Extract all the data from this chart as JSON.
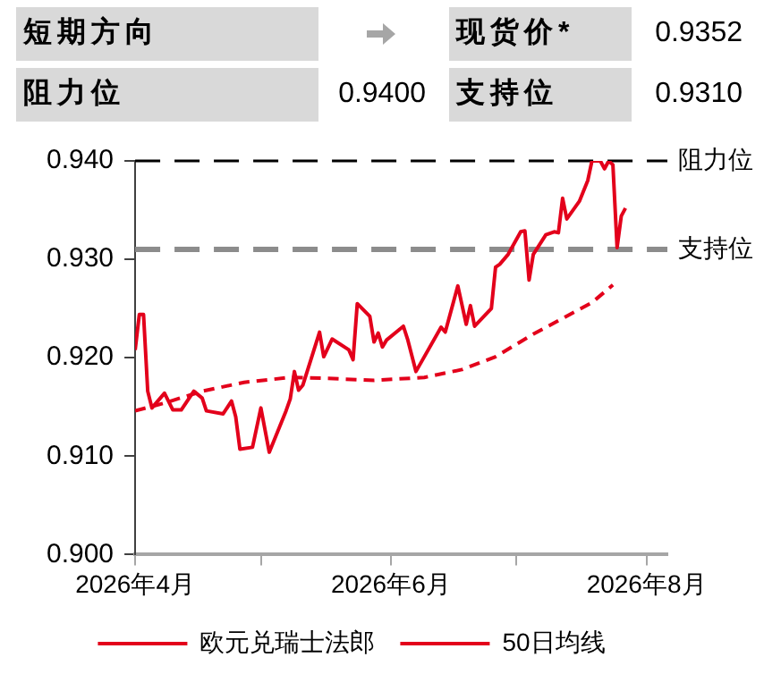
{
  "chart_data": [
    {
      "type": "other",
      "annotations": [
        "短期方向",
        "现货价*",
        "0.9352",
        "阻力位",
        "0.9400",
        "支持位",
        "0.9310"
      ]
    },
    {
      "type": "line",
      "marker": "none",
      "legend": "bottom",
      "grid": false,
      "xlim": [
        "2026-04-01",
        "2026-08-06"
      ],
      "xticks": [
        {
          "value": "2026-04-01",
          "label": "2026年4月"
        },
        {
          "value": "2026-05-01",
          "label": null
        },
        {
          "value": "2026-06-01",
          "label": "2026年6月"
        },
        {
          "value": "2026-07-01",
          "label": null
        },
        {
          "value": "2026-08-01",
          "label": "2026年8月"
        }
      ],
      "ylim": [
        0.9,
        0.94
      ],
      "yticks": [
        {
          "value": 0.9,
          "label": "0.900"
        },
        {
          "value": 0.91,
          "label": "0.910"
        },
        {
          "value": 0.92,
          "label": "0.920"
        },
        {
          "value": 0.93,
          "label": "0.930"
        },
        {
          "value": 0.94,
          "label": "0.940"
        }
      ],
      "ref_lines": [
        {
          "axis": "y",
          "value": 0.94,
          "label": "阻力位",
          "color": "#000000",
          "line_style": "dashed"
        },
        {
          "axis": "y",
          "value": 0.931,
          "label": "支持位",
          "color": "#8c8c8c",
          "line_style": "dashed"
        }
      ],
      "series": [
        {
          "name": "欧元兑瑞士法郎",
          "color": "#e3001b",
          "line_style": "solid",
          "x": [
            "2026-04-01",
            "2026-04-02",
            "2026-04-03",
            "2026-04-04",
            "2026-04-05",
            "2026-04-08",
            "2026-04-10",
            "2026-04-12",
            "2026-04-15",
            "2026-04-17",
            "2026-04-18",
            "2026-04-22",
            "2026-04-24",
            "2026-04-25",
            "2026-04-26",
            "2026-04-29",
            "2026-05-01",
            "2026-05-03",
            "2026-05-07",
            "2026-05-08",
            "2026-05-09",
            "2026-05-10",
            "2026-05-11",
            "2026-05-15",
            "2026-05-16",
            "2026-05-18",
            "2026-05-22",
            "2026-05-23",
            "2026-05-24",
            "2026-05-27",
            "2026-05-28",
            "2026-05-29",
            "2026-05-30",
            "2026-05-31",
            "2026-06-04",
            "2026-06-05",
            "2026-06-07",
            "2026-06-13",
            "2026-06-14",
            "2026-06-17",
            "2026-06-19",
            "2026-06-20",
            "2026-06-21",
            "2026-06-25",
            "2026-06-26",
            "2026-06-27",
            "2026-06-29",
            "2026-07-02",
            "2026-07-03",
            "2026-07-04",
            "2026-07-05",
            "2026-07-08",
            "2026-07-10",
            "2026-07-11",
            "2026-07-12",
            "2026-07-13",
            "2026-07-16",
            "2026-07-18",
            "2026-07-19",
            "2026-07-21",
            "2026-07-22",
            "2026-07-23",
            "2026-07-24",
            "2026-07-25",
            "2026-07-26",
            "2026-07-27"
          ],
          "values": [
            0.9208,
            0.9244,
            0.9244,
            0.9166,
            0.9149,
            0.9164,
            0.9147,
            0.9147,
            0.9166,
            0.9159,
            0.9146,
            0.9143,
            0.9156,
            0.914,
            0.9107,
            0.9109,
            0.9149,
            0.9104,
            0.9146,
            0.9158,
            0.9186,
            0.9167,
            0.9172,
            0.9226,
            0.9201,
            0.9219,
            0.9208,
            0.9198,
            0.9255,
            0.9242,
            0.9216,
            0.9225,
            0.9211,
            0.9218,
            0.9232,
            0.9219,
            0.9186,
            0.9231,
            0.9226,
            0.9273,
            0.9234,
            0.9253,
            0.9232,
            0.925,
            0.9292,
            0.9295,
            0.9305,
            0.9328,
            0.9329,
            0.9279,
            0.9305,
            0.9325,
            0.9328,
            0.9327,
            0.9362,
            0.9341,
            0.9359,
            0.938,
            0.94,
            0.94,
            0.9392,
            0.94,
            0.9396,
            0.9312,
            0.9344,
            0.9352
          ]
        },
        {
          "name": "50日均线",
          "color": "#e3001b",
          "line_style": "dashed",
          "x": [
            "2026-04-01",
            "2026-04-08",
            "2026-04-17",
            "2026-04-27",
            "2026-05-08",
            "2026-05-17",
            "2026-05-28",
            "2026-06-09",
            "2026-06-18",
            "2026-06-26",
            "2026-07-05",
            "2026-07-12",
            "2026-07-19",
            "2026-07-24"
          ],
          "values": [
            0.9146,
            0.9154,
            0.9166,
            0.9175,
            0.918,
            0.9179,
            0.9177,
            0.918,
            0.9188,
            0.9201,
            0.9224,
            0.924,
            0.9256,
            0.9274
          ]
        }
      ]
    }
  ]
}
